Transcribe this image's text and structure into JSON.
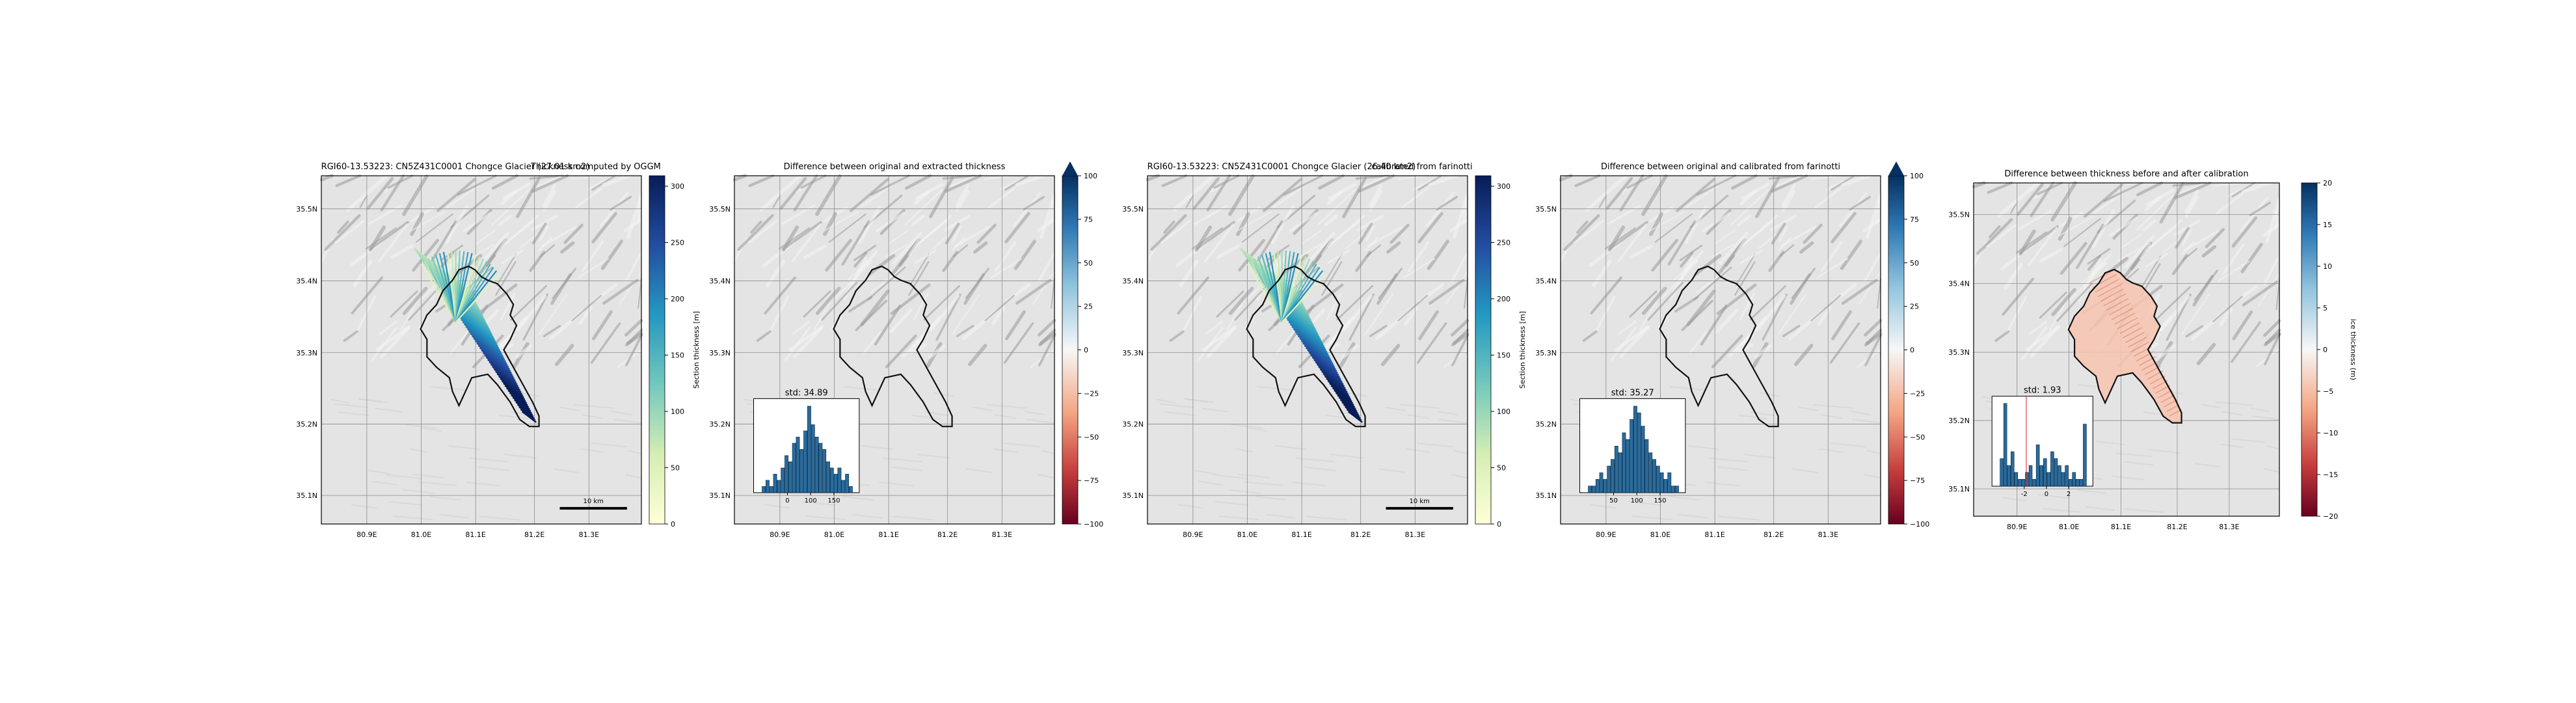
{
  "panels": [
    {
      "title": "RGI60-13.53223: CN5Z431C0001 Chongce Glacier (27.01 km2)",
      "subtitle": "Thickness computed by OGGM",
      "map": "sections",
      "scalebar": "10 km",
      "cbar": {
        "label": "Section thickness [m]",
        "ticks": [
          "0",
          "50",
          "100",
          "150",
          "200",
          "250",
          "300"
        ],
        "type": "ygb",
        "extend": false
      }
    },
    {
      "title": "Difference between original and extracted thickness",
      "map": "outline",
      "inset": {
        "std_label": "std: 34.89",
        "xticks": [
          "0",
          "100",
          "150"
        ],
        "values": [
          1,
          2,
          1,
          3,
          2,
          4,
          6,
          5,
          8,
          9,
          7,
          10,
          14,
          11,
          9,
          8,
          7,
          5,
          4,
          3,
          4,
          2,
          3,
          1
        ]
      },
      "cbar": {
        "label": "",
        "ticks": [
          "−100",
          "−75",
          "−50",
          "−25",
          "0",
          "25",
          "50",
          "75",
          "100"
        ],
        "type": "rdbu",
        "extend": true
      }
    },
    {
      "title": "RGI60-13.53223: CN5Z431C0001 Chongce Glacier (26.40 km2)",
      "subtitle": "calibrated from farinotti",
      "map": "sections",
      "scalebar": "10 km",
      "cbar": {
        "label": "Section thickness [m]",
        "ticks": [
          "0",
          "50",
          "100",
          "150",
          "200",
          "250",
          "300"
        ],
        "type": "ygb",
        "extend": false
      }
    },
    {
      "title": "Difference between original and calibrated from farinotti",
      "map": "outline",
      "inset": {
        "std_label": "std: 35.27",
        "xticks": [
          "50",
          "100",
          "150"
        ],
        "values": [
          1,
          1,
          2,
          3,
          2,
          4,
          5,
          7,
          6,
          9,
          8,
          11,
          13,
          12,
          10,
          8,
          6,
          5,
          4,
          3,
          2,
          3,
          1,
          1
        ]
      },
      "cbar": {
        "label": "",
        "ticks": [
          "−100",
          "−75",
          "−50",
          "−25",
          "0",
          "25",
          "50",
          "75",
          "100"
        ],
        "type": "rdbu",
        "extend": true
      }
    },
    {
      "title": "Difference between thickness before and after calibration",
      "map": "diff",
      "inset": {
        "std_label": "std: 1.93",
        "xticks": [
          "-2",
          "0",
          "2"
        ],
        "values": [
          4,
          12,
          3,
          5,
          2,
          1,
          1,
          2,
          3,
          1,
          6,
          3,
          4,
          2,
          5,
          4,
          3,
          2,
          3,
          1,
          2,
          1,
          1,
          9
        ]
      },
      "cbar": {
        "label": "ice thickness (m)",
        "ticks": [
          "−20",
          "−15",
          "−10",
          "−5",
          "0",
          "5",
          "10",
          "15",
          "20"
        ],
        "type": "rdbu",
        "extend": false
      }
    }
  ],
  "lon_ticks": [
    "80.9E",
    "81.0E",
    "81.1E",
    "81.2E",
    "81.3E"
  ],
  "lat_ticks": [
    "35.5N",
    "35.4N",
    "35.3N",
    "35.2N",
    "35.1N"
  ],
  "colors": {
    "outline": "#111111",
    "hist_bar": "#2a6b9c",
    "relief_base": "#e4e4e4"
  }
}
